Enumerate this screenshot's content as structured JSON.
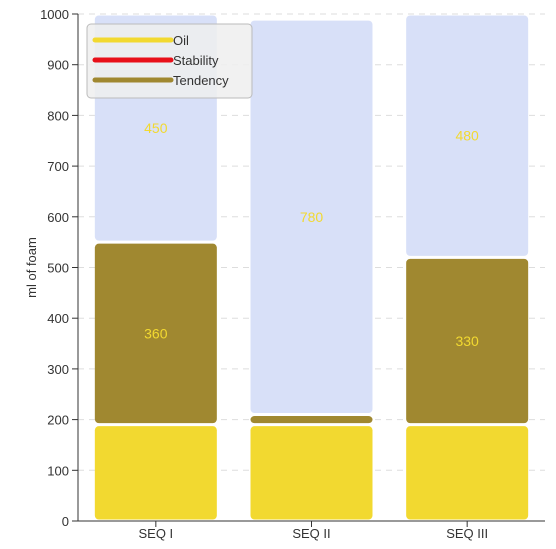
{
  "chart_data": {
    "type": "bar",
    "stacked": true,
    "categories": [
      "SEQ I",
      "SEQ II",
      "SEQ III"
    ],
    "series": [
      {
        "name": "Oil",
        "values": [
          190,
          190,
          190
        ],
        "color": "#f2d930"
      },
      {
        "name": "Stability",
        "values": [
          0,
          0,
          0
        ],
        "color": "#e8101a"
      },
      {
        "name": "Tendency",
        "values": [
          360,
          20,
          330
        ],
        "color": "#a08830"
      },
      {
        "name": "",
        "values": [
          450,
          780,
          480
        ],
        "color": "#d8e0f8"
      }
    ],
    "data_labels": {
      "Tendency": [
        "360",
        "",
        "330"
      ],
      "remainder": [
        "450",
        "780",
        "480"
      ]
    },
    "title": "",
    "xlabel": "",
    "ylabel": "ml of foam",
    "ylim": [
      0,
      1000
    ],
    "yticks": [
      0,
      100,
      200,
      300,
      400,
      500,
      600,
      700,
      800,
      900,
      1000
    ],
    "grid": true,
    "legend": {
      "position": "top-left",
      "entries": [
        {
          "label": "Oil",
          "color": "#f2d930"
        },
        {
          "label": "Stability",
          "color": "#e8101a"
        },
        {
          "label": "Tendency",
          "color": "#a08830"
        }
      ]
    }
  }
}
